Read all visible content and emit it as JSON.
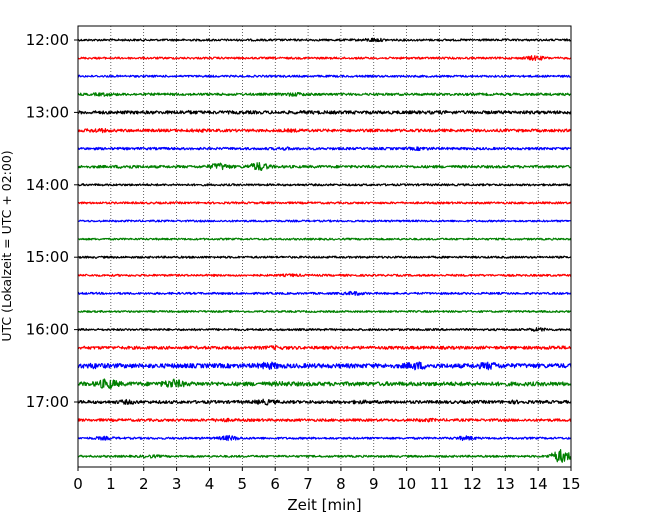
{
  "chart_data": {
    "type": "line",
    "title": "",
    "xlabel": "Zeit  [min]",
    "ylabel": "UTC (Lokalzeit = UTC + 02:00)",
    "xlim": [
      0,
      15
    ],
    "x_ticks": [
      0,
      1,
      2,
      3,
      4,
      5,
      6,
      7,
      8,
      9,
      10,
      11,
      12,
      13,
      14,
      15
    ],
    "y_ticks": [
      "12:00",
      "13:00",
      "14:00",
      "15:00",
      "16:00",
      "17:00"
    ],
    "grid": "vertical dotted",
    "trace_interval_min": 15,
    "colors": [
      "#000000",
      "#ff0000",
      "#0000ff",
      "#008000"
    ],
    "series": [
      {
        "start": "12:00",
        "color": "#000000",
        "amplitude": 1.0,
        "events": [
          {
            "t": 9.0,
            "amp": 2.2
          }
        ]
      },
      {
        "start": "12:15",
        "color": "#ff0000",
        "amplitude": 1.0,
        "events": [
          {
            "t": 13.9,
            "amp": 2.6
          }
        ]
      },
      {
        "start": "12:30",
        "color": "#0000ff",
        "amplitude": 1.0,
        "events": []
      },
      {
        "start": "12:45",
        "color": "#008000",
        "amplitude": 1.2,
        "events": [
          {
            "t": 0.8,
            "amp": 2.0
          },
          {
            "t": 6.6,
            "amp": 2.2
          }
        ]
      },
      {
        "start": "13:00",
        "color": "#000000",
        "amplitude": 1.6,
        "events": [
          {
            "t": 3.3,
            "amp": 2.0
          },
          {
            "t": 7.0,
            "amp": 1.8
          },
          {
            "t": 11.0,
            "amp": 1.8
          }
        ]
      },
      {
        "start": "13:15",
        "color": "#ff0000",
        "amplitude": 1.4,
        "events": [
          {
            "t": 0.6,
            "amp": 2.4
          },
          {
            "t": 3.6,
            "amp": 1.8
          },
          {
            "t": 6.5,
            "amp": 1.8
          }
        ]
      },
      {
        "start": "13:30",
        "color": "#0000ff",
        "amplitude": 1.2,
        "events": [
          {
            "t": 6.3,
            "amp": 1.8
          },
          {
            "t": 10.4,
            "amp": 2.0
          }
        ]
      },
      {
        "start": "13:45",
        "color": "#008000",
        "amplitude": 1.3,
        "events": [
          {
            "t": 1.5,
            "amp": 2.0
          },
          {
            "t": 4.3,
            "amp": 3.8
          },
          {
            "t": 5.5,
            "amp": 4.5
          }
        ]
      },
      {
        "start": "14:00",
        "color": "#000000",
        "amplitude": 1.0,
        "events": []
      },
      {
        "start": "14:15",
        "color": "#ff0000",
        "amplitude": 1.0,
        "events": []
      },
      {
        "start": "14:30",
        "color": "#0000ff",
        "amplitude": 0.9,
        "events": []
      },
      {
        "start": "14:45",
        "color": "#008000",
        "amplitude": 0.9,
        "events": []
      },
      {
        "start": "15:00",
        "color": "#000000",
        "amplitude": 1.0,
        "events": []
      },
      {
        "start": "15:15",
        "color": "#ff0000",
        "amplitude": 1.0,
        "events": [
          {
            "t": 6.5,
            "amp": 1.6
          }
        ]
      },
      {
        "start": "15:30",
        "color": "#0000ff",
        "amplitude": 1.0,
        "events": [
          {
            "t": 8.4,
            "amp": 2.2
          }
        ]
      },
      {
        "start": "15:45",
        "color": "#008000",
        "amplitude": 0.9,
        "events": []
      },
      {
        "start": "16:00",
        "color": "#000000",
        "amplitude": 1.0,
        "events": [
          {
            "t": 14.0,
            "amp": 2.0
          }
        ]
      },
      {
        "start": "16:15",
        "color": "#ff0000",
        "amplitude": 1.5,
        "events": [
          {
            "t": 6.0,
            "amp": 2.2
          },
          {
            "t": 14.5,
            "amp": 2.0
          }
        ]
      },
      {
        "start": "16:30",
        "color": "#0000ff",
        "amplitude": 2.2,
        "events": [
          {
            "t": 0.5,
            "amp": 3.0
          },
          {
            "t": 5.8,
            "amp": 4.0
          },
          {
            "t": 10.3,
            "amp": 4.5
          },
          {
            "t": 12.5,
            "amp": 4.2
          }
        ]
      },
      {
        "start": "16:45",
        "color": "#008000",
        "amplitude": 2.0,
        "events": [
          {
            "t": 0.9,
            "amp": 5.5
          },
          {
            "t": 2.9,
            "amp": 5.0
          },
          {
            "t": 6.3,
            "amp": 2.5
          }
        ]
      },
      {
        "start": "17:00",
        "color": "#000000",
        "amplitude": 1.5,
        "events": [
          {
            "t": 1.5,
            "amp": 2.5
          },
          {
            "t": 5.7,
            "amp": 3.0
          },
          {
            "t": 8.6,
            "amp": 2.0
          },
          {
            "t": 13.3,
            "amp": 2.0
          }
        ]
      },
      {
        "start": "17:15",
        "color": "#ff0000",
        "amplitude": 1.3,
        "events": [
          {
            "t": 4.4,
            "amp": 2.0
          },
          {
            "t": 10.6,
            "amp": 2.0
          }
        ]
      },
      {
        "start": "17:30",
        "color": "#0000ff",
        "amplitude": 1.0,
        "events": [
          {
            "t": 0.8,
            "amp": 2.0
          },
          {
            "t": 4.6,
            "amp": 2.8
          },
          {
            "t": 11.8,
            "amp": 2.4
          }
        ]
      },
      {
        "start": "17:45",
        "color": "#008000",
        "amplitude": 1.0,
        "events": [
          {
            "t": 2.2,
            "amp": 1.8
          },
          {
            "t": 14.7,
            "amp": 7.0
          }
        ]
      }
    ]
  }
}
